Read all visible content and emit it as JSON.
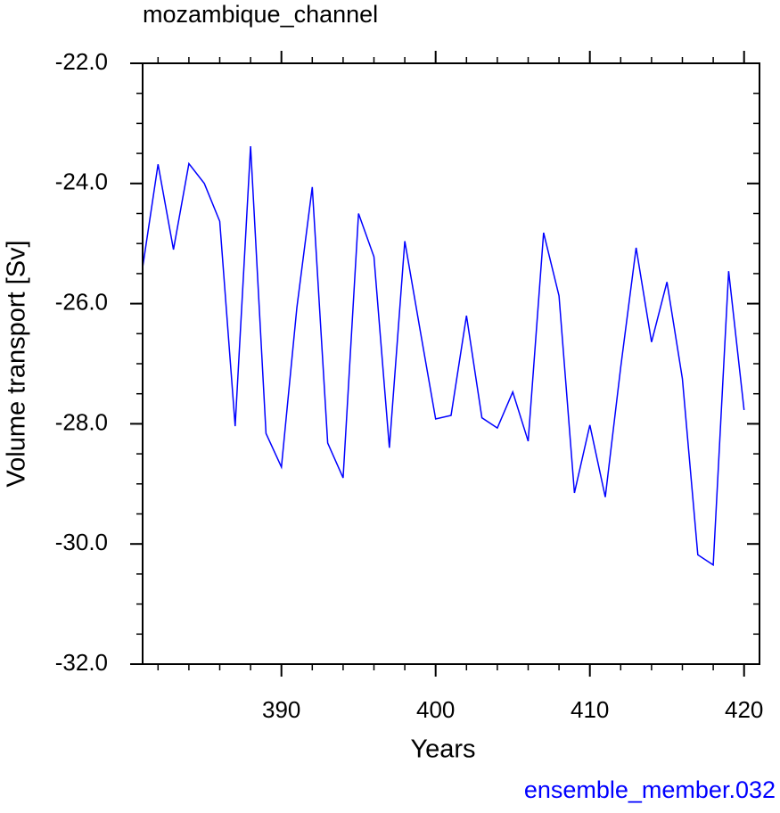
{
  "chart_data": {
    "type": "line",
    "title": "mozambique_channel",
    "x_label": "Years",
    "y_label": "Volume transport [Sv]",
    "annotation": "ensemble_member.032",
    "x": [
      381,
      382,
      383,
      384,
      385,
      386,
      387,
      388,
      389,
      390,
      391,
      392,
      393,
      394,
      395,
      396,
      397,
      398,
      399,
      400,
      401,
      402,
      403,
      404,
      405,
      406,
      407,
      408,
      409,
      410,
      411,
      412,
      413,
      414,
      415,
      416,
      417,
      418,
      419,
      420
    ],
    "series": [
      {
        "name": "ensemble_member.032",
        "color": "#0000ff",
        "values": [
          -25.4,
          -23.68,
          -25.1,
          -23.67,
          -24.0,
          -24.63,
          -28.04,
          -23.38,
          -28.16,
          -28.72,
          -26.07,
          -24.06,
          -28.32,
          -28.9,
          -24.5,
          -25.22,
          -28.4,
          -24.96,
          -26.45,
          -27.92,
          -27.86,
          -26.2,
          -27.9,
          -28.07,
          -27.47,
          -28.29,
          -24.82,
          -25.87,
          -29.15,
          -28.02,
          -29.22,
          -27.06,
          -25.07,
          -26.64,
          -25.64,
          -27.25,
          -30.18,
          -30.35,
          -25.46,
          -27.77
        ]
      }
    ],
    "xlim": [
      381,
      421
    ],
    "ylim": [
      -32,
      -22
    ],
    "xticks": [
      390,
      400,
      410,
      420
    ],
    "yticks": [
      {
        "value": -32,
        "label": "-32.0"
      },
      {
        "value": -30,
        "label": "-30.0"
      },
      {
        "value": -28,
        "label": "-28.0"
      },
      {
        "value": -26,
        "label": "-26.0"
      },
      {
        "value": -24,
        "label": "-24.0"
      },
      {
        "value": -22,
        "label": "-22.0"
      }
    ]
  }
}
